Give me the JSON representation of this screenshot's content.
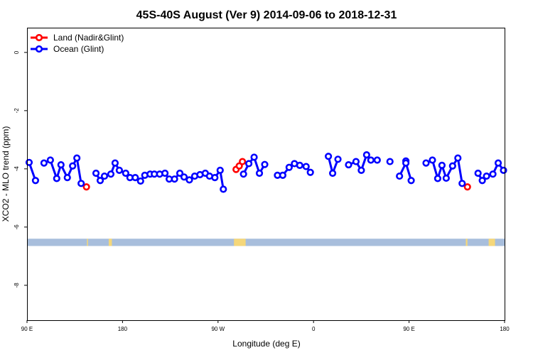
{
  "chart_data": {
    "type": "line",
    "title": "45S-40S August (Ver 9)   2014-09-06 to 2018-12-31",
    "xlabel": "Longitude (deg E)",
    "ylabel": "XCO2 - MLO trend (ppm)",
    "xlim": [
      90,
      540
    ],
    "ylim": [
      -9.2,
      0.85
    ],
    "x_ticks": [
      {
        "value": 90,
        "label": "90 E"
      },
      {
        "value": 180,
        "label": "180"
      },
      {
        "value": 270,
        "label": "90 W"
      },
      {
        "value": 360,
        "label": "0"
      },
      {
        "value": 450,
        "label": "90 E"
      },
      {
        "value": 540,
        "label": "180"
      }
    ],
    "y_ticks": [
      {
        "value": 0,
        "label": "0"
      },
      {
        "value": -2,
        "label": "-2"
      },
      {
        "value": -4,
        "label": "-4"
      },
      {
        "value": -6,
        "label": "-6"
      },
      {
        "value": -8,
        "label": "-8"
      }
    ],
    "legend_position": "top-left",
    "series": [
      {
        "name": "Land (Nadir&Glint)",
        "color": "#ff0000",
        "segments": [
          [
            [
              146,
              -4.62
            ]
          ],
          [
            [
              287,
              -4.02
            ],
            [
              290,
              -3.9
            ],
            [
              293,
              -3.75
            ]
          ],
          [
            [
              505,
              -4.62
            ]
          ]
        ]
      },
      {
        "name": "Ocean (Glint)",
        "color": "#0000ff",
        "segments": [
          [
            [
              92,
              -3.78
            ],
            [
              98,
              -4.4
            ]
          ],
          [
            [
              106,
              -3.8
            ],
            [
              112,
              -3.7
            ],
            [
              118,
              -4.33
            ],
            [
              122,
              -3.86
            ],
            [
              128,
              -4.3
            ],
            [
              133,
              -3.9
            ],
            [
              137,
              -3.63
            ],
            [
              141,
              -4.5
            ]
          ],
          [
            [
              155,
              -4.15
            ],
            [
              159,
              -4.4
            ],
            [
              163,
              -4.25
            ],
            [
              169,
              -4.18
            ],
            [
              173,
              -3.8
            ],
            [
              177,
              -4.05
            ],
            [
              183,
              -4.15
            ],
            [
              187,
              -4.3
            ],
            [
              192,
              -4.3
            ],
            [
              197,
              -4.42
            ],
            [
              201,
              -4.22
            ],
            [
              206,
              -4.18
            ],
            [
              210,
              -4.18
            ],
            [
              215,
              -4.18
            ],
            [
              220,
              -4.15
            ],
            [
              224,
              -4.35
            ],
            [
              229,
              -4.35
            ],
            [
              234,
              -4.15
            ],
            [
              238,
              -4.28
            ],
            [
              243,
              -4.38
            ],
            [
              248,
              -4.25
            ],
            [
              253,
              -4.2
            ],
            [
              258,
              -4.15
            ],
            [
              262,
              -4.25
            ],
            [
              267,
              -4.3
            ],
            [
              272,
              -4.05
            ],
            [
              275,
              -4.7
            ]
          ],
          [
            [
              294,
              -4.18
            ],
            [
              299,
              -3.82
            ],
            [
              304,
              -3.6
            ],
            [
              309,
              -4.15
            ],
            [
              314,
              -3.85
            ]
          ],
          [
            [
              326,
              -4.22
            ],
            [
              331,
              -4.22
            ],
            [
              337,
              -3.95
            ],
            [
              342,
              -3.82
            ],
            [
              347,
              -3.88
            ],
            [
              353,
              -3.92
            ],
            [
              357,
              -4.12
            ]
          ],
          [
            [
              374,
              -3.57
            ],
            [
              378,
              -4.15
            ],
            [
              383,
              -3.67
            ]
          ],
          [
            [
              393,
              -3.86
            ],
            [
              400,
              -3.75
            ],
            [
              405,
              -4.05
            ],
            [
              410,
              -3.52
            ],
            [
              414,
              -3.7
            ],
            [
              420,
              -3.7
            ]
          ],
          [
            [
              432,
              -3.75
            ]
          ],
          [
            [
              447,
              -3.73
            ]
          ],
          [
            [
              441,
              -4.25
            ],
            [
              447,
              -3.8
            ],
            [
              452,
              -4.4
            ]
          ],
          [
            [
              466,
              -3.8
            ],
            [
              472,
              -3.7
            ],
            [
              477,
              -4.33
            ],
            [
              481,
              -3.88
            ],
            [
              485,
              -4.32
            ],
            [
              491,
              -3.9
            ],
            [
              496,
              -3.63
            ],
            [
              500,
              -4.5
            ]
          ],
          [
            [
              515,
              -4.15
            ],
            [
              519,
              -4.4
            ],
            [
              523,
              -4.25
            ],
            [
              529,
              -4.18
            ],
            [
              534,
              -3.8
            ],
            [
              539,
              -4.05
            ]
          ]
        ]
      }
    ],
    "land_mask_band": {
      "y_range": [
        -6.65,
        -6.4
      ],
      "ocean_color": "#a8bedc",
      "land_color": "#f5d77a",
      "land_spans": [
        [
          146.5,
          147.5
        ],
        [
          167,
          170
        ],
        [
          285,
          296
        ],
        [
          503.5,
          505
        ],
        [
          525,
          531
        ]
      ]
    }
  }
}
